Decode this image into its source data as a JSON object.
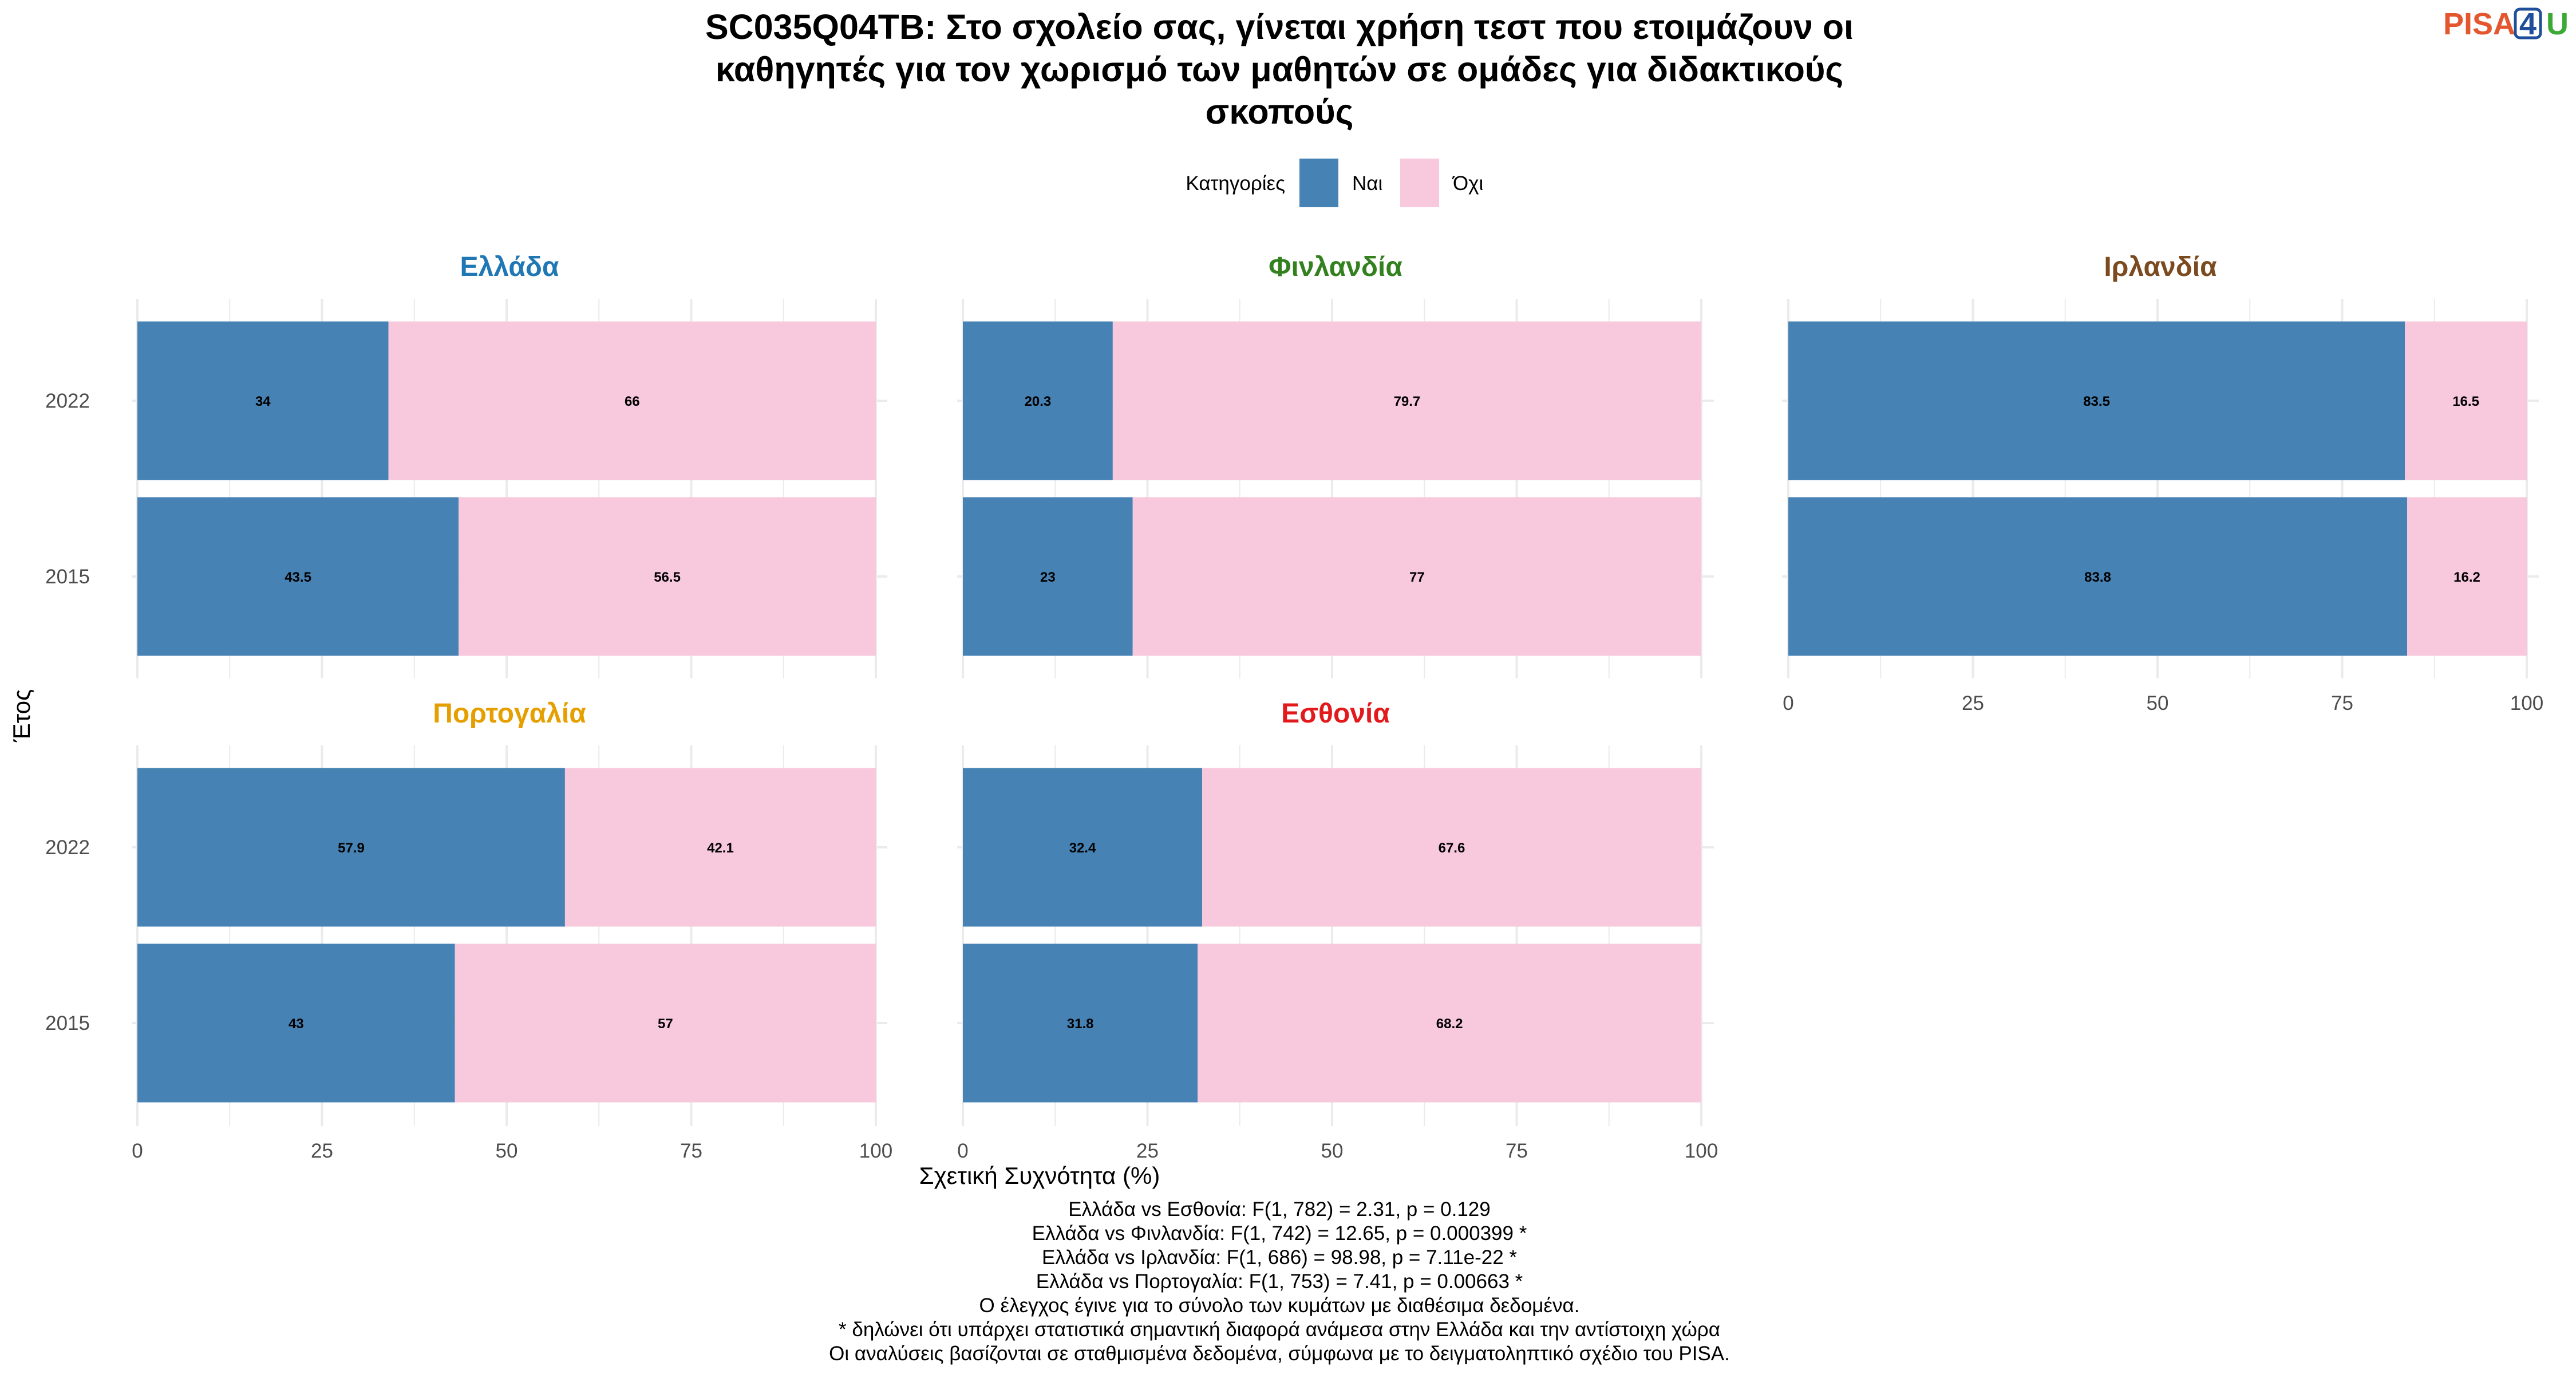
{
  "title_lines": [
    "SC035Q04TB: Στο σχολείο σας, γίνεται χρήση τεστ που ετοιμάζουν οι",
    "καθηγητές για τον χωρισμό των μαθητών σε ομάδες για διδακτικούς",
    "σκοπούς"
  ],
  "logo": {
    "text": "PISA",
    "digit": "4",
    "letter": "U"
  },
  "colors": {
    "yes": "#4682B4",
    "no": "#F8C8DC",
    "grid": "#EBEBEB"
  },
  "chart_data": {
    "type": "bar",
    "orientation": "horizontal",
    "stacked": true,
    "xlabel": "Σχετική Συχνότητα (%)",
    "ylabel": "Έτος",
    "xlim": [
      0,
      100
    ],
    "x_ticks": [
      "0",
      "25",
      "50",
      "75",
      "100"
    ],
    "categories": [
      "2022",
      "2015"
    ],
    "legend": {
      "title": "Κατηγορίες",
      "position": "top",
      "entries": [
        "Ναι",
        "Όχι"
      ]
    },
    "facets": [
      {
        "name": "Ελλάδα",
        "color": "#1F78B4",
        "series": [
          {
            "name": "Ναι",
            "values": [
              34,
              43.5
            ]
          },
          {
            "name": "Όχι",
            "values": [
              66,
              56.5
            ]
          }
        ],
        "labels": {
          "yes": [
            "34",
            "43.5"
          ],
          "no": [
            "66",
            "56.5"
          ]
        }
      },
      {
        "name": "Φινλανδία",
        "color": "#33801F",
        "series": [
          {
            "name": "Ναι",
            "values": [
              20.3,
              23
            ]
          },
          {
            "name": "Όχι",
            "values": [
              79.7,
              77
            ]
          }
        ],
        "labels": {
          "yes": [
            "20.3",
            "23"
          ],
          "no": [
            "79.7",
            "77"
          ]
        }
      },
      {
        "name": "Ιρλανδία",
        "color": "#7B4A1E",
        "series": [
          {
            "name": "Ναι",
            "values": [
              83.5,
              83.8
            ]
          },
          {
            "name": "Όχι",
            "values": [
              16.5,
              16.2
            ]
          }
        ],
        "labels": {
          "yes": [
            "83.5",
            "83.8"
          ],
          "no": [
            "16.5",
            "16.2"
          ]
        }
      },
      {
        "name": "Πορτογαλία",
        "color": "#E69F00",
        "series": [
          {
            "name": "Ναι",
            "values": [
              57.9,
              43
            ]
          },
          {
            "name": "Όχι",
            "values": [
              42.1,
              57
            ]
          }
        ],
        "labels": {
          "yes": [
            "57.9",
            "43"
          ],
          "no": [
            "42.1",
            "57"
          ]
        }
      },
      {
        "name": "Εσθονία",
        "color": "#E31A1C",
        "series": [
          {
            "name": "Ναι",
            "values": [
              32.4,
              31.8
            ]
          },
          {
            "name": "Όχι",
            "values": [
              67.6,
              68.2
            ]
          }
        ],
        "labels": {
          "yes": [
            "32.4",
            "31.8"
          ],
          "no": [
            "67.6",
            "68.2"
          ]
        }
      }
    ],
    "notes": [
      "Ελλάδα vs Εσθονία: F(1, 782) = 2.31, p = 0.129",
      "Ελλάδα vs Φινλανδία: F(1, 742) = 12.65, p = 0.000399 *",
      "Ελλάδα vs Ιρλανδία: F(1, 686) = 98.98, p = 7.11e-22 *",
      "Ελλάδα vs Πορτογαλία: F(1, 753) = 7.41, p = 0.00663 *",
      "Ο έλεγχος έγινε για το σύνολο των κυμάτων με διαθέσιμα δεδομένα.",
      "* δηλώνει ότι υπάρχει στατιστικά σημαντική διαφορά ανάμεσα στην Ελλάδα και την αντίστοιχη χώρα",
      "Οι αναλύσεις βασίζονται σε σταθμισμένα δεδομένα, σύμφωνα με το δειγματοληπτικό σχέδιο του PISA."
    ]
  }
}
